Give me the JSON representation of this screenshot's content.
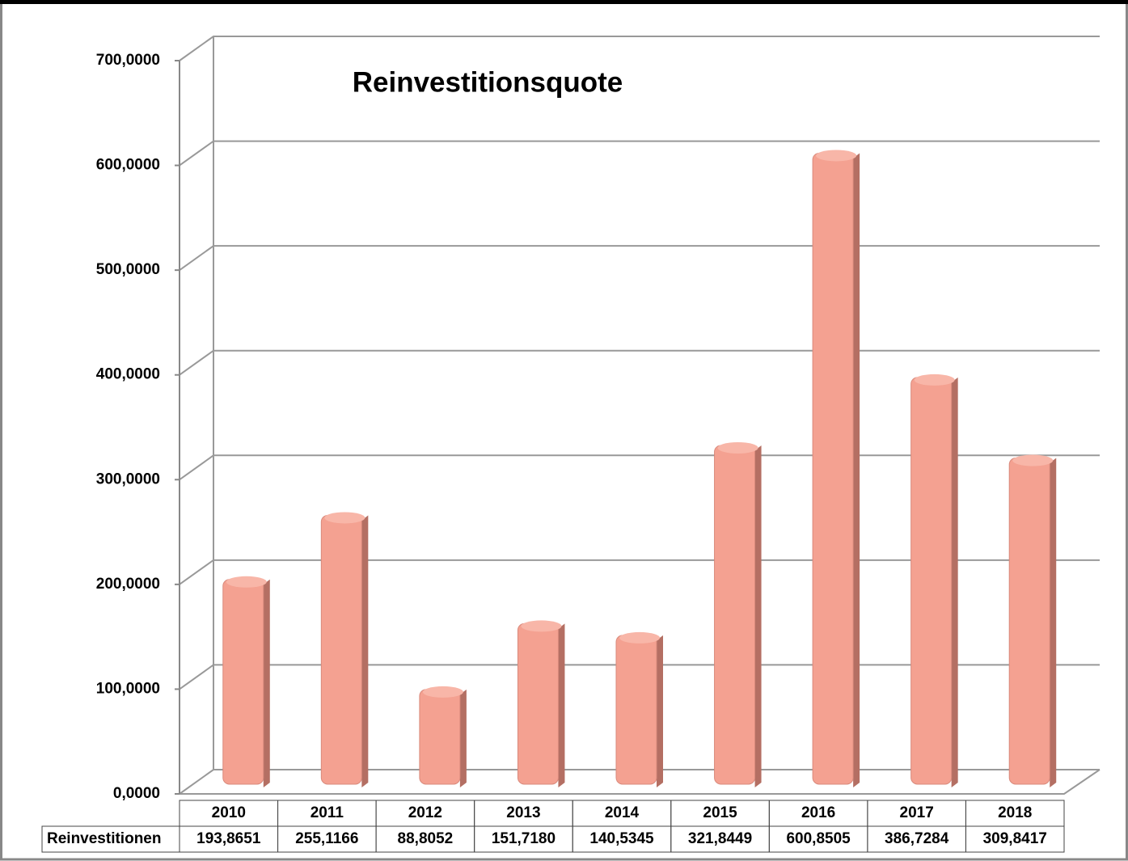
{
  "chart_data": {
    "type": "bar",
    "title": "Reinvestitionsquote",
    "categories": [
      "2010",
      "2011",
      "2012",
      "2013",
      "2014",
      "2015",
      "2016",
      "2017",
      "2018"
    ],
    "series": [
      {
        "name": "Reinvestitionen",
        "color": "#f4a191",
        "values": [
          193.8651,
          255.1166,
          88.8052,
          151.718,
          140.5345,
          321.8449,
          600.8505,
          386.7284,
          309.8417
        ],
        "value_labels": [
          "193,8651",
          "255,1166",
          "88,8052",
          "151,7180",
          "140,5345",
          "321,8449",
          "600,8505",
          "386,7284",
          "309,8417"
        ]
      }
    ],
    "ylim": [
      0,
      700
    ],
    "yticks": [
      {
        "value": 0,
        "label": "0,0000"
      },
      {
        "value": 100,
        "label": "100,0000"
      },
      {
        "value": 200,
        "label": "200,0000"
      },
      {
        "value": 300,
        "label": "300,0000"
      },
      {
        "value": 400,
        "label": "400,0000"
      },
      {
        "value": 500,
        "label": "500,0000"
      },
      {
        "value": 600,
        "label": "600,0000"
      },
      {
        "value": 700,
        "label": "700,0000"
      }
    ],
    "grid": true
  }
}
